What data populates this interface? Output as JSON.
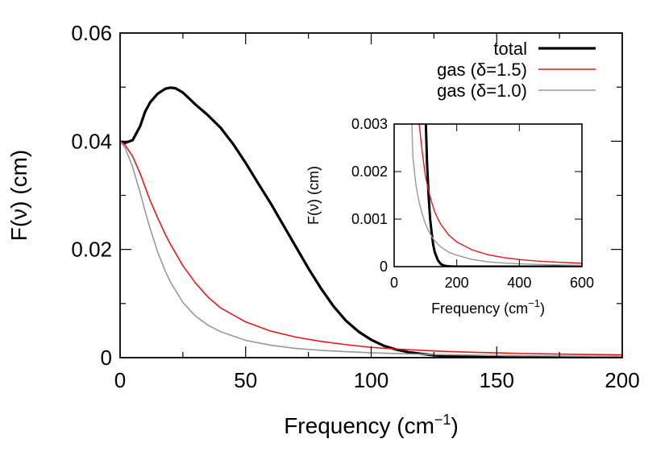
{
  "chart_data": [
    {
      "type": "line",
      "xlabel": "Frequency (cm",
      "xlabel_sup": "−1",
      "xlabel_end": ")",
      "ylabel": "F(ν) (cm)",
      "xlim": [
        0,
        200
      ],
      "ylim": [
        0,
        0.06
      ],
      "xticks": [
        {
          "value": 0,
          "label": "0"
        },
        {
          "value": 50,
          "label": "50"
        },
        {
          "value": 100,
          "label": "100"
        },
        {
          "value": 150,
          "label": "150"
        },
        {
          "value": 200,
          "label": "200"
        }
      ],
      "yticks": [
        {
          "value": 0,
          "label": "0"
        },
        {
          "value": 0.02,
          "label": "0.02"
        },
        {
          "value": 0.04,
          "label": "0.04"
        },
        {
          "value": 0.06,
          "label": "0.06"
        }
      ],
      "legend_position": "top-right",
      "series": [
        {
          "name": "total",
          "color": "#000000",
          "x": [
            0,
            2,
            5,
            8,
            10,
            12,
            15,
            18,
            20,
            22,
            25,
            30,
            35,
            40,
            45,
            50,
            55,
            60,
            65,
            70,
            75,
            80,
            85,
            90,
            95,
            100,
            105,
            110,
            115,
            120,
            125,
            130,
            140,
            150,
            160,
            170,
            180,
            190,
            200
          ],
          "y": [
            0.0399,
            0.0397,
            0.0402,
            0.0428,
            0.0455,
            0.0472,
            0.0488,
            0.0497,
            0.0499,
            0.0498,
            0.049,
            0.0468,
            0.0448,
            0.0425,
            0.0395,
            0.036,
            0.0322,
            0.0285,
            0.0245,
            0.0205,
            0.0165,
            0.0128,
            0.0095,
            0.0068,
            0.0048,
            0.0033,
            0.0022,
            0.0015,
            0.001,
            0.0007,
            0.00045,
            0.0003,
            0.00013,
            5e-05,
            2e-05,
            1e-05,
            5e-06,
            0,
            0
          ]
        },
        {
          "name": "gas (δ=1.5)",
          "color": "#e41a1c",
          "x": [
            0,
            2,
            5,
            8,
            10,
            12,
            15,
            18,
            20,
            25,
            30,
            35,
            40,
            50,
            60,
            70,
            80,
            90,
            100,
            110,
            120,
            130,
            140,
            150,
            160,
            170,
            180,
            190,
            200
          ],
          "y": [
            0.04,
            0.0393,
            0.0372,
            0.034,
            0.0315,
            0.029,
            0.0258,
            0.0228,
            0.021,
            0.017,
            0.0138,
            0.0112,
            0.0092,
            0.0066,
            0.0049,
            0.0038,
            0.003,
            0.0024,
            0.0019,
            0.0016,
            0.00135,
            0.00115,
            0.001,
            0.00088,
            0.00078,
            0.0007,
            0.00063,
            0.00057,
            0.00052
          ]
        },
        {
          "name": "gas (δ=1.0)",
          "color": "#999999",
          "x": [
            0,
            2,
            5,
            8,
            10,
            12,
            15,
            18,
            20,
            25,
            30,
            35,
            40,
            50,
            60,
            70,
            80,
            90,
            100,
            110,
            120,
            130,
            140,
            150,
            160,
            170,
            180,
            190,
            200
          ],
          "y": [
            0.04,
            0.0388,
            0.0352,
            0.0305,
            0.027,
            0.0238,
            0.0195,
            0.016,
            0.014,
            0.0102,
            0.0077,
            0.006,
            0.0048,
            0.0032,
            0.0023,
            0.0017,
            0.00135,
            0.0011,
            0.0009,
            0.00075,
            0.00063,
            0.00054,
            0.00047,
            0.00041,
            0.00036,
            0.00032,
            0.00029,
            0.00026,
            0.00024
          ]
        }
      ]
    },
    {
      "type": "line",
      "inset": true,
      "xlabel": "Frequency (cm",
      "xlabel_sup": "−1",
      "xlabel_end": ")",
      "ylabel": "F(ν) (cm)",
      "xlim": [
        0,
        600
      ],
      "ylim": [
        0,
        0.003
      ],
      "xticks": [
        {
          "value": 0,
          "label": "0"
        },
        {
          "value": 200,
          "label": "200"
        },
        {
          "value": 400,
          "label": "400"
        },
        {
          "value": 600,
          "label": "600"
        }
      ],
      "yticks": [
        {
          "value": 0,
          "label": "0"
        },
        {
          "value": 0.001,
          "label": "0.001"
        },
        {
          "value": 0.002,
          "label": "0.002"
        },
        {
          "value": 0.003,
          "label": "0.003"
        }
      ],
      "series": [
        {
          "name": "total",
          "color": "#000000",
          "x": [
            98,
            100,
            105,
            110,
            115,
            120,
            125,
            130,
            140,
            150,
            160,
            170,
            180,
            200,
            250,
            300,
            400,
            600
          ],
          "y": [
            0.0036,
            0.0033,
            0.0022,
            0.0015,
            0.001,
            0.0007,
            0.00045,
            0.0003,
            0.00013,
            5e-05,
            2e-05,
            1e-05,
            5e-06,
            0,
            0,
            0,
            0,
            0
          ]
        },
        {
          "name": "gas (δ=1.5)",
          "color": "#e41a1c",
          "x": [
            75,
            80,
            90,
            100,
            110,
            120,
            130,
            140,
            150,
            175,
            200,
            250,
            300,
            350,
            400,
            450,
            500,
            550,
            600
          ],
          "y": [
            0.0034,
            0.003,
            0.0024,
            0.0019,
            0.0016,
            0.00135,
            0.00115,
            0.001,
            0.00088,
            0.00066,
            0.00052,
            0.00035,
            0.00025,
            0.00019,
            0.00015,
            0.00012,
            0.0001,
            8.5e-05,
            7.2e-05
          ]
        },
        {
          "name": "gas (δ=1.0)",
          "color": "#999999",
          "x": [
            56,
            60,
            70,
            80,
            90,
            100,
            110,
            120,
            130,
            140,
            150,
            175,
            200,
            250,
            300,
            350,
            400,
            450,
            500,
            550,
            600
          ],
          "y": [
            0.0031,
            0.0023,
            0.0017,
            0.00135,
            0.0011,
            0.0009,
            0.00075,
            0.00063,
            0.00054,
            0.00047,
            0.00041,
            0.0003,
            0.00024,
            0.00015,
            0.0001,
            7.5e-05,
            6e-05,
            4.8e-05,
            4e-05,
            3.3e-05,
            2.8e-05
          ]
        }
      ]
    }
  ]
}
